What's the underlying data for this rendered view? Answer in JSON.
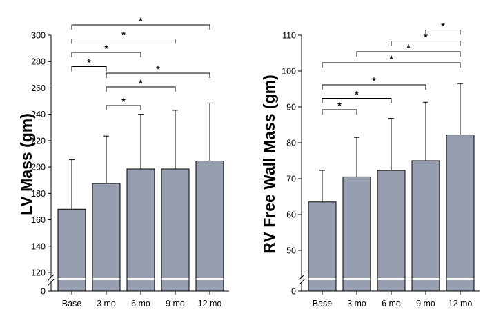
{
  "chart_data": [
    {
      "type": "bar",
      "ylabel": "LV Mass (gm)",
      "categories": [
        "Base",
        "3 mo",
        "6 mo",
        "9 mo",
        "12 mo"
      ],
      "values": [
        168,
        187.5,
        198.5,
        198.5,
        204.5
      ],
      "error_upper": [
        205.5,
        223.5,
        240,
        243,
        248.5
      ],
      "ylim": [
        120,
        300
      ],
      "ytick_labels": [
        "0",
        "120",
        "140",
        "160",
        "180",
        "200",
        "220",
        "240",
        "260",
        "280",
        "300"
      ],
      "axis_break": true,
      "bar_color": "#979eaf",
      "significance": [
        {
          "from": 0,
          "to": 4,
          "label": "*"
        },
        {
          "from": 0,
          "to": 3,
          "label": "*"
        },
        {
          "from": 0,
          "to": 2,
          "label": "*"
        },
        {
          "from": 0,
          "to": 1,
          "label": "*"
        },
        {
          "from": 1,
          "to": 4,
          "label": "*"
        },
        {
          "from": 1,
          "to": 3,
          "label": "*"
        },
        {
          "from": 1,
          "to": 2,
          "label": "*"
        }
      ]
    },
    {
      "type": "bar",
      "ylabel": "RV Free Wall Mass (gm)",
      "categories": [
        "Base",
        "3 mo",
        "6 mo",
        "9 mo",
        "12 mo"
      ],
      "values": [
        63.5,
        70.5,
        72.3,
        75,
        82.2
      ],
      "error_upper": [
        72.3,
        81.5,
        86.8,
        91.3,
        96.5
      ],
      "ylim": [
        50,
        110
      ],
      "ytick_labels": [
        "0",
        "50",
        "60",
        "70",
        "80",
        "90",
        "100",
        "110"
      ],
      "axis_break": true,
      "bar_color": "#979eaf",
      "significance": [
        {
          "from": 3,
          "to": 4,
          "label": "*"
        },
        {
          "from": 2,
          "to": 4,
          "label": "*"
        },
        {
          "from": 1,
          "to": 4,
          "label": "*"
        },
        {
          "from": 0,
          "to": 4,
          "label": "*"
        },
        {
          "from": 0,
          "to": 3,
          "label": "*"
        },
        {
          "from": 0,
          "to": 2,
          "label": "*"
        },
        {
          "from": 0,
          "to": 1,
          "label": "*"
        }
      ]
    }
  ]
}
